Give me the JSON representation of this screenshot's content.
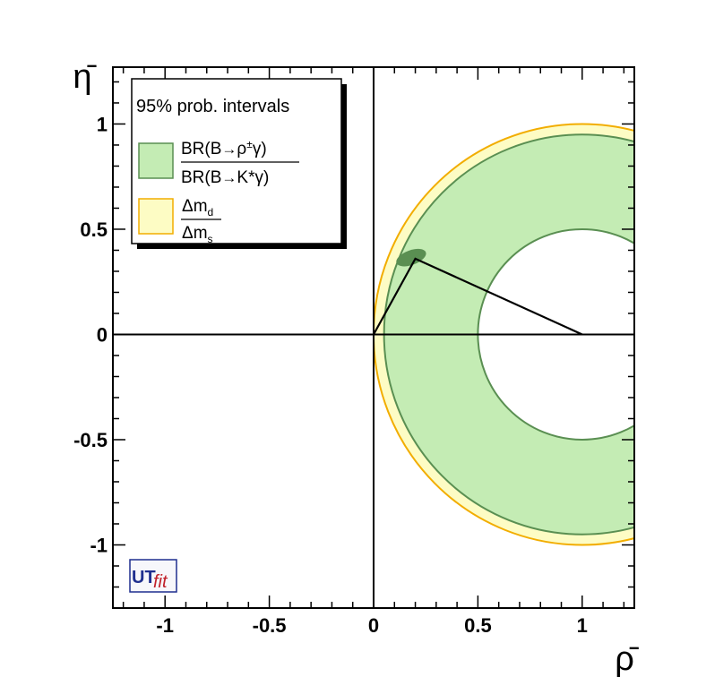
{
  "chart_data": {
    "type": "area",
    "xlabel": "ρ̄",
    "ylabel": "η̄",
    "xlim": [
      -1.25,
      1.25
    ],
    "ylim": [
      -1.3,
      1.27
    ],
    "x_ticks": [
      {
        "value": -1,
        "label": "-1"
      },
      {
        "value": -0.5,
        "label": "-0.5"
      },
      {
        "value": 0,
        "label": "0"
      },
      {
        "value": 0.5,
        "label": "0.5"
      },
      {
        "value": 1,
        "label": "1"
      }
    ],
    "y_ticks": [
      {
        "value": 1,
        "label": "1"
      },
      {
        "value": 0.5,
        "label": "0.5"
      },
      {
        "value": 0,
        "label": "0"
      },
      {
        "value": -0.5,
        "label": "-0.5"
      },
      {
        "value": -1,
        "label": "-1"
      }
    ],
    "reference_lines": {
      "x": 0,
      "y": 0
    },
    "legend": {
      "placement": "top-left",
      "header": "95% prob. intervals",
      "entries": [
        {
          "label_numerator": "BR(B→ρ±γ)",
          "label_denominator": "BR(B→K*γ)",
          "fill": "#c4ecb4",
          "edge": "#5a8f52"
        },
        {
          "label_numerator": "Δmd",
          "label_denominator": "Δms",
          "fill": "#fdfcc4",
          "edge": "#f2ad00"
        }
      ]
    },
    "constraints": [
      {
        "name": "Δmd/Δms",
        "shape": "annulus",
        "center": [
          1,
          0
        ],
        "r_inner": 0.83,
        "r_outer": 1.0,
        "fill": "#fdfcc4",
        "edge": "#f2ad00"
      },
      {
        "name": "BR(B→ρ±γ)/BR(B→K*γ)",
        "shape": "annulus",
        "center": [
          1,
          0
        ],
        "r_inner": 0.5,
        "r_outer": 0.95,
        "fill": "#c4ecb4",
        "edge": "#5a8f52"
      }
    ],
    "apex_region": {
      "center": [
        0.18,
        0.365
      ],
      "rx": 0.075,
      "ry": 0.035,
      "angle_deg": -20,
      "fill": "#5a8f52"
    },
    "triangle": {
      "vertices": [
        [
          0,
          0
        ],
        [
          0.2,
          0.36
        ],
        [
          1,
          0
        ]
      ]
    }
  },
  "logo": {
    "text_main": "UT",
    "text_sub": "fit"
  },
  "colors": {
    "axis": "#000000",
    "green_fill": "#c4ecb4",
    "green_edge": "#5a8f52",
    "yellow_fill": "#fdfcc4",
    "yellow_edge": "#f2ad00",
    "logo_blue": "#1f2f8f",
    "logo_red": "#c0202a"
  }
}
